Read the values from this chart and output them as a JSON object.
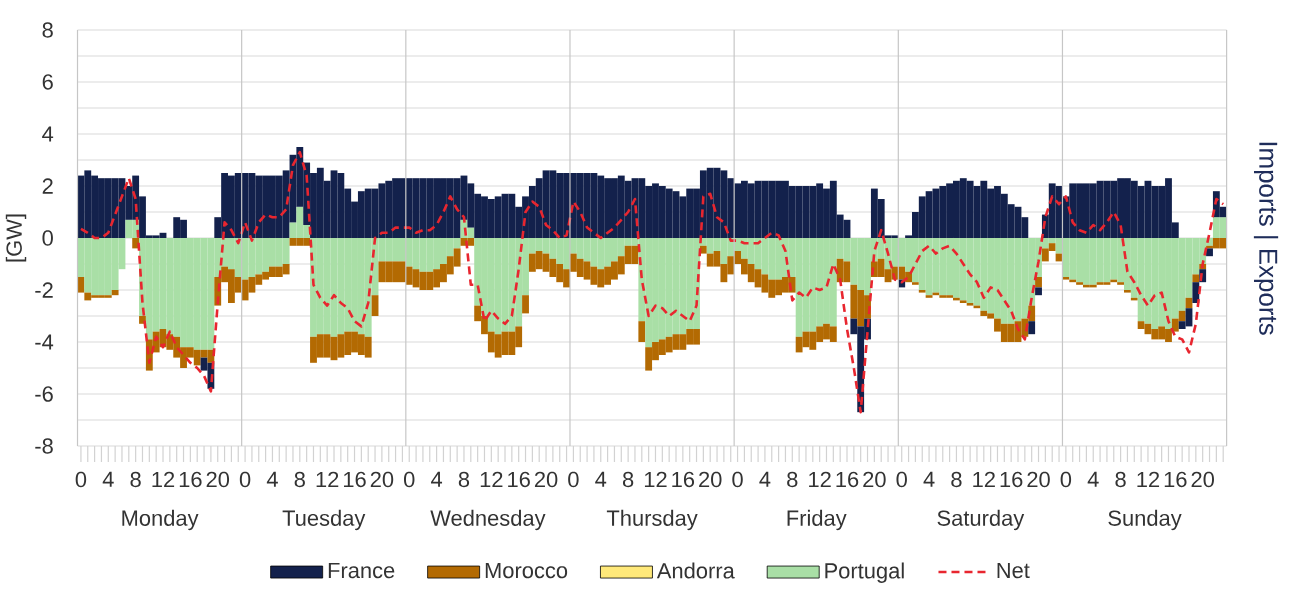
{
  "chart_data": {
    "type": "bar",
    "stacked": true,
    "ylabel": "[GW]",
    "y2label": "Imports | Exports",
    "categories": [
      "0",
      null,
      null,
      null,
      "4",
      null,
      null,
      null,
      "8",
      null,
      null,
      null,
      "12",
      null,
      null,
      null,
      "16",
      null,
      null,
      null,
      "20",
      null,
      null,
      null,
      "0",
      null,
      null,
      null,
      "4",
      null,
      null,
      null,
      "8",
      null,
      null,
      null,
      "12",
      null,
      null,
      null,
      "16",
      null,
      null,
      null,
      "20",
      null,
      null,
      null,
      "0",
      null,
      null,
      null,
      "4",
      null,
      null,
      null,
      "8",
      null,
      null,
      null,
      "12",
      null,
      null,
      null,
      "16",
      null,
      null,
      null,
      "20",
      null,
      null,
      null,
      "0",
      null,
      null,
      null,
      "4",
      null,
      null,
      null,
      "8",
      null,
      null,
      null,
      "12",
      null,
      null,
      null,
      "16",
      null,
      null,
      null,
      "20",
      null,
      null,
      null,
      "0",
      null,
      null,
      null,
      "4",
      null,
      null,
      null,
      "8",
      null,
      null,
      null,
      "12",
      null,
      null,
      null,
      "16",
      null,
      null,
      null,
      "20",
      null,
      null,
      null,
      "0",
      null,
      null,
      null,
      "4",
      null,
      null,
      null,
      "8",
      null,
      null,
      null,
      "12",
      null,
      null,
      null,
      "16",
      null,
      null,
      null,
      "20",
      null,
      null,
      null,
      "0",
      null,
      null,
      null,
      "4",
      null,
      null,
      null,
      "8",
      null,
      null,
      null,
      "12",
      null,
      null,
      null,
      "16",
      null,
      null,
      null,
      "20",
      null,
      null,
      null
    ],
    "annotations": [
      "Monday",
      "Tuesday",
      "Wednesday",
      "Thursday",
      "Friday",
      "Saturday",
      "Sunday"
    ],
    "ylim": [
      -8,
      8
    ],
    "yticks": [
      -8,
      -6,
      -4,
      -2,
      0,
      2,
      4,
      6,
      8
    ],
    "grid": "y",
    "legend": "bottom",
    "series": [
      {
        "name": "Portugal",
        "color": "#a9dfa6",
        "values": [
          -1.5,
          -2.1,
          -2.2,
          -2.2,
          -2.2,
          -2.0,
          -1.2,
          0.7,
          0.7,
          -3.0,
          -3.9,
          -3.6,
          -3.5,
          -3.7,
          -3.8,
          -4.2,
          -4.2,
          -4.3,
          -4.3,
          -4.3,
          -1.5,
          -1.1,
          -1.2,
          -1.5,
          -1.6,
          -1.5,
          -1.4,
          -1.3,
          -1.1,
          -1.1,
          -1.0,
          0.6,
          1.2,
          0.5,
          -3.8,
          -3.7,
          -3.7,
          -3.8,
          -3.7,
          -3.6,
          -3.6,
          -3.7,
          -3.8,
          -2.2,
          -0.9,
          -0.9,
          -0.9,
          -0.9,
          -1.1,
          -1.2,
          -1.3,
          -1.3,
          -1.2,
          -1.0,
          -0.7,
          -0.4,
          0.7,
          0.4,
          -2.6,
          -3.0,
          -3.6,
          -3.7,
          -3.6,
          -3.6,
          -3.4,
          -2.2,
          -0.6,
          -0.5,
          -0.6,
          -0.8,
          -1.0,
          -1.2,
          -0.6,
          -0.8,
          -0.9,
          -1.1,
          -1.2,
          -1.1,
          -0.9,
          -0.7,
          -0.3,
          -0.3,
          -3.2,
          -4.2,
          -4.0,
          -3.9,
          -3.8,
          -3.7,
          -3.7,
          -3.5,
          -3.5,
          -0.3,
          -0.6,
          -0.5,
          -1.0,
          -0.7,
          -0.5,
          -0.8,
          -1.0,
          -1.2,
          -1.4,
          -1.6,
          -1.6,
          -1.5,
          -1.5,
          -3.8,
          -3.6,
          -3.6,
          -3.4,
          -3.3,
          -3.4,
          -0.8,
          -0.9,
          -1.8,
          -2.0,
          -2.2,
          -0.9,
          -0.8,
          -1.2,
          -1.1,
          -1.1,
          -1.3,
          -1.7,
          -2.0,
          -2.2,
          -2.1,
          -2.2,
          -2.2,
          -2.3,
          -2.4,
          -2.5,
          -2.6,
          -2.8,
          -2.9,
          -3.1,
          -3.3,
          -3.3,
          -3.2,
          -3.1,
          -2.6,
          -1.5,
          -0.4,
          -0.2,
          -0.6,
          -1.5,
          -1.6,
          -1.7,
          -1.8,
          -1.8,
          -1.7,
          -1.7,
          -1.6,
          -1.7,
          -2.0,
          -2.3,
          -3.2,
          -3.3,
          -3.5,
          -3.4,
          -3.5,
          -3.1,
          -2.8,
          -2.3,
          -1.4,
          -1.0,
          -0.3,
          0.8,
          0.8
        ]
      },
      {
        "name": "Andorra",
        "color": "#ffe97a",
        "values": [
          0,
          0,
          0,
          0,
          0,
          0,
          0,
          0,
          0,
          0,
          0,
          0,
          0,
          0,
          0,
          0,
          0,
          0,
          0,
          0,
          0,
          0,
          0,
          0,
          0,
          0,
          0,
          0,
          0,
          0,
          0,
          0,
          0,
          0,
          0,
          0,
          0,
          0,
          0,
          0,
          0,
          0,
          0,
          0,
          0,
          0,
          0,
          0,
          0,
          0,
          0,
          0,
          0,
          0,
          0,
          0,
          0,
          0,
          0,
          0,
          0,
          0,
          0,
          0,
          0,
          0,
          0,
          0,
          0,
          0,
          0,
          0,
          0,
          0,
          0,
          0,
          0,
          0,
          0,
          0,
          0,
          0,
          0,
          0,
          0,
          0,
          0,
          0,
          0,
          0,
          0,
          0,
          0,
          0,
          0,
          0,
          0,
          0,
          0,
          0,
          0,
          0,
          0,
          0,
          0,
          0,
          0,
          0,
          0,
          0,
          0,
          0,
          0,
          0,
          0,
          0,
          0,
          0,
          0,
          0,
          0,
          0,
          0,
          0,
          0,
          0,
          0,
          0,
          0,
          0,
          0,
          0,
          0,
          0,
          0,
          0,
          0,
          0,
          0,
          0,
          0,
          0,
          0,
          0,
          0,
          0,
          0,
          0,
          0,
          0,
          0,
          0,
          0,
          0,
          0,
          0,
          0,
          0,
          0,
          0,
          0,
          0,
          0,
          0,
          0,
          0,
          0,
          0
        ]
      },
      {
        "name": "Morocco",
        "color": "#b36a02",
        "values": [
          -0.6,
          -0.3,
          -0.1,
          -0.1,
          -0.1,
          -0.2,
          0,
          0,
          -0.4,
          -0.3,
          -1.2,
          -0.8,
          -0.7,
          -0.6,
          -0.8,
          -0.8,
          -0.4,
          -0.6,
          -0.3,
          -0.5,
          -1.1,
          -0.6,
          -1.3,
          -0.6,
          -0.8,
          -0.6,
          -0.4,
          -0.3,
          -0.4,
          -0.4,
          -0.4,
          -0.3,
          -0.3,
          -0.3,
          -1.0,
          -0.9,
          -0.9,
          -0.9,
          -0.9,
          -0.9,
          -0.8,
          -0.8,
          -0.8,
          -0.8,
          -0.8,
          -0.8,
          -0.8,
          -0.8,
          -0.7,
          -0.7,
          -0.7,
          -0.7,
          -0.7,
          -0.7,
          -0.7,
          -0.7,
          -0.3,
          -0.3,
          -0.6,
          -0.7,
          -0.8,
          -0.9,
          -0.9,
          -0.9,
          -0.8,
          -0.7,
          -0.7,
          -0.7,
          -0.7,
          -0.7,
          -0.7,
          -0.7,
          -0.7,
          -0.7,
          -0.7,
          -0.7,
          -0.7,
          -0.7,
          -0.7,
          -0.7,
          -0.7,
          -0.7,
          -0.8,
          -0.9,
          -0.7,
          -0.6,
          -0.6,
          -0.6,
          -0.6,
          -0.6,
          -0.6,
          -0.3,
          -0.5,
          -0.6,
          -0.7,
          -0.7,
          -0.5,
          -0.6,
          -0.7,
          -0.7,
          -0.7,
          -0.7,
          -0.6,
          -0.6,
          -0.6,
          -0.6,
          -0.6,
          -0.7,
          -0.6,
          -0.6,
          -0.6,
          -0.9,
          -0.8,
          -1.3,
          -1.4,
          -0.9,
          -0.6,
          -0.7,
          -0.5,
          -0.5,
          -0.5,
          -0.4,
          -0.1,
          -0.1,
          -0.1,
          -0.1,
          -0.1,
          -0.1,
          -0.1,
          -0.1,
          -0.1,
          -0.1,
          -0.2,
          -0.2,
          -0.5,
          -0.7,
          -0.7,
          -0.8,
          -0.7,
          -0.6,
          -0.4,
          -0.5,
          -0.3,
          -0.3,
          -0.1,
          -0.1,
          -0.1,
          -0.1,
          -0.1,
          -0.1,
          -0.1,
          -0.1,
          -0.1,
          -0.1,
          -0.1,
          -0.3,
          -0.4,
          -0.4,
          -0.5,
          -0.5,
          -0.5,
          -0.4,
          -0.4,
          -0.3,
          -0.2,
          -0.1,
          -0.4,
          -0.4
        ]
      },
      {
        "name": "France",
        "color": "#13214c",
        "values": [
          2.4,
          2.6,
          2.4,
          2.3,
          2.3,
          2.3,
          2.3,
          1.3,
          1.7,
          1.6,
          0.1,
          0.1,
          0.2,
          0,
          0.8,
          0.7,
          0,
          0,
          -0.5,
          -1.0,
          0.8,
          2.5,
          2.4,
          2.5,
          2.5,
          2.5,
          2.4,
          2.4,
          2.4,
          2.4,
          2.6,
          2.6,
          2.3,
          2.4,
          2.5,
          2.7,
          2.2,
          2.6,
          2.5,
          1.9,
          1.4,
          1.8,
          1.9,
          1.9,
          2.1,
          2.2,
          2.3,
          2.3,
          2.3,
          2.3,
          2.3,
          2.3,
          2.3,
          2.3,
          2.3,
          2.3,
          1.7,
          1.7,
          1.7,
          1.6,
          1.5,
          1.6,
          1.7,
          1.7,
          1.2,
          1.6,
          2.0,
          2.3,
          2.6,
          2.6,
          2.5,
          2.5,
          2.5,
          2.5,
          2.5,
          2.5,
          2.4,
          2.3,
          2.3,
          2.4,
          2.2,
          2.3,
          2.3,
          2.0,
          2.1,
          2.0,
          1.9,
          1.8,
          1.6,
          1.9,
          1.9,
          2.6,
          2.7,
          2.7,
          2.6,
          2.3,
          2.1,
          2.2,
          2.1,
          2.2,
          2.2,
          2.2,
          2.2,
          2.2,
          2.0,
          2.0,
          2.0,
          2.0,
          2.1,
          1.9,
          2.2,
          0.9,
          0.7,
          -0.6,
          -3.3,
          -0.8,
          1.9,
          1.5,
          0.1,
          0.1,
          -0.3,
          0.1,
          1.0,
          1.6,
          1.8,
          1.9,
          2.0,
          2.1,
          2.2,
          2.3,
          2.2,
          2.0,
          2.2,
          1.9,
          2.0,
          1.7,
          1.3,
          1.2,
          0.8,
          -0.5,
          -0.3,
          0.9,
          2.1,
          2.0,
          1.6,
          2.1,
          2.1,
          2.1,
          2.1,
          2.2,
          2.2,
          2.2,
          2.3,
          2.3,
          2.2,
          2.0,
          2.2,
          2.0,
          2.0,
          2.3,
          0.6,
          -0.3,
          -0.7,
          -0.8,
          -0.5,
          -0.3,
          1.0,
          0.4
        ]
      },
      {
        "name": "Net",
        "type": "line",
        "line_style": "dashed",
        "color": "#e8262f",
        "values": [
          0.35,
          0.2,
          0,
          0,
          0.2,
          0.9,
          1.6,
          2.3,
          1.5,
          -2.5,
          -4.8,
          -3.8,
          -4.2,
          -3.6,
          -4.2,
          -4.5,
          -4.8,
          -5.0,
          -5.3,
          -5.9,
          -2.5,
          0.6,
          0.3,
          -0.2,
          0.6,
          -0.1,
          0.6,
          0.9,
          0.8,
          0.8,
          1.1,
          2.8,
          3.3,
          2.4,
          -1.8,
          -2.3,
          -2.6,
          -2.2,
          -2.5,
          -2.7,
          -3.2,
          -3.4,
          -2.5,
          0.0,
          0.2,
          0.2,
          0.4,
          0.4,
          0.4,
          0.2,
          0.3,
          0.3,
          0.5,
          1.0,
          1.6,
          1.1,
          0.8,
          -1.8,
          -1.8,
          -3.2,
          -2.8,
          -3.1,
          -3.3,
          -3.0,
          -1.2,
          1.0,
          1.4,
          1.2,
          0.5,
          0.3,
          0.0,
          0.1,
          1.4,
          1.0,
          0.4,
          0.2,
          0.0,
          0.2,
          0.4,
          0.7,
          1.0,
          1.5,
          -1.6,
          -3.0,
          -2.6,
          -2.7,
          -3.0,
          -2.8,
          -3.0,
          -3.2,
          -2.6,
          1.6,
          1.7,
          0.8,
          0.6,
          -0.1,
          -0.1,
          -0.2,
          -0.2,
          -0.2,
          0.0,
          0.2,
          0.1,
          -0.5,
          -2.4,
          -2.1,
          -2.3,
          -1.9,
          -2.0,
          -1.9,
          -1.0,
          -1.6,
          -3.5,
          -5.0,
          -6.7,
          -3.6,
          -0.5,
          0.3,
          -0.6,
          -1.6,
          -1.7,
          -1.5,
          -1.0,
          -0.5,
          -0.3,
          -0.6,
          -0.4,
          -0.3,
          -0.6,
          -1.0,
          -1.4,
          -1.7,
          -2.3,
          -1.9,
          -2.0,
          -2.4,
          -2.8,
          -3.5,
          -3.9,
          -2.3,
          -0.9,
          0.8,
          1.6,
          1.3,
          1.6,
          0.6,
          0.3,
          0.2,
          0.5,
          0.3,
          0.6,
          1.0,
          0.5,
          -1.3,
          -1.7,
          -2.2,
          -2.6,
          -2.2,
          -2.1,
          -3.2,
          -3.8,
          -3.9,
          -4.4,
          -3.3,
          -1.0,
          0.2,
          1.5,
          1.3
        ]
      }
    ]
  }
}
